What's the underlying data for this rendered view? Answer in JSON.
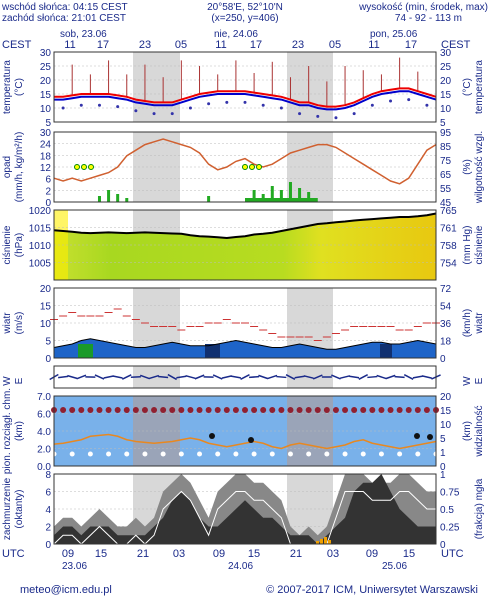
{
  "header": {
    "sunrise": "wschód słońca: 04:15 CEST",
    "sunset": "zachód słońca: 21:01 CEST",
    "coords": "20°58'E, 52°10'N",
    "grid": "(x=250, y=406)",
    "elev_label": "wysokość (min, środek, max)",
    "elev_values": "74 - 92 - 113 m"
  },
  "footer": {
    "email": "meteo@icm.edu.pl",
    "copyright": "© 2007-2017 ICM, Uniwersytet Warszawski"
  },
  "time_axis": {
    "top_tz": "CEST",
    "bottom_tz": "UTC",
    "top_days": [
      "sob, 23.06",
      "nie, 24.06",
      "pon, 25.06"
    ],
    "top_hours": [
      "11",
      "17",
      "23",
      "05",
      "11",
      "17",
      "23",
      "05",
      "11",
      "17"
    ],
    "bottom_hours": [
      "09",
      "15",
      "21",
      "03",
      "09",
      "15",
      "21",
      "03",
      "09",
      "15"
    ],
    "bottom_days": [
      "23.06",
      "24.06",
      "25.06"
    ]
  },
  "chart_data": [
    {
      "type": "line",
      "id": "temperature",
      "ylabel_left": "temperatura",
      "unit_left": "(°C)",
      "ylabel_right": "temperatura",
      "unit_right": "(°C)",
      "ylim": [
        5,
        30
      ],
      "yticks": [
        "30",
        "25",
        "20",
        "15",
        "10",
        "5"
      ],
      "series": [
        {
          "values": [
            14,
            14,
            14.5,
            15,
            15,
            15,
            15,
            14.5,
            14,
            13,
            12.5,
            12,
            12,
            12,
            13,
            14,
            15,
            15.5,
            16,
            16,
            16,
            16,
            15.5,
            15,
            14.5,
            14,
            13,
            12,
            12,
            11,
            10.5,
            10.5,
            11,
            12,
            13.5,
            15,
            16,
            16.5,
            17,
            17,
            16,
            15,
            14
          ]
        },
        {
          "values": [
            13,
            13,
            13.5,
            14,
            14,
            14,
            14,
            13.5,
            13,
            12,
            11.5,
            11,
            11,
            11,
            12,
            13,
            14,
            14.5,
            15,
            15,
            15,
            15,
            14.5,
            14,
            13.5,
            13,
            12,
            11,
            11,
            10,
            9.5,
            9.5,
            10,
            11,
            12.5,
            14,
            15,
            15.5,
            16,
            16,
            15,
            14,
            13
          ]
        }
      ]
    },
    {
      "type": "bar",
      "id": "precipitation",
      "ylabel_left": "opad",
      "unit_left": "(mm/h, kg/m²/h)",
      "ylabel_right": "wilgotność wzgl.",
      "unit_right": "(%)",
      "ylim_left": [
        0,
        30
      ],
      "ylim_right": [
        45,
        95
      ],
      "yticks_left": [
        "30",
        "24",
        "18",
        "12",
        "6",
        "2",
        "0"
      ],
      "yticks_right": [
        "95",
        "85",
        "75",
        "65",
        "55",
        "45"
      ],
      "series": [
        {
          "values": [
            62,
            60,
            62,
            60,
            62,
            64,
            66,
            70,
            78,
            82,
            86,
            88,
            90,
            88,
            86,
            84,
            80,
            72,
            68,
            70,
            74,
            76,
            72,
            70,
            72,
            76,
            80,
            82,
            84,
            86,
            86,
            84,
            80,
            76,
            72,
            68,
            64,
            60,
            58,
            62,
            72,
            82,
            86
          ]
        }
      ]
    },
    {
      "type": "area",
      "id": "pressure",
      "ylabel_left": "ciśnienie",
      "unit_left": "(hPa)",
      "ylabel_right": "ciśnienie",
      "unit_right": "(mm Hg)",
      "ylim": [
        1000,
        1020
      ],
      "yticks_left": [
        "1020",
        "1015",
        "1010",
        "1005"
      ],
      "yticks_right": [
        "765",
        "761",
        "758",
        "754"
      ],
      "series": [
        {
          "values": [
            1014.2,
            1014,
            1013.8,
            1013.5,
            1013.4,
            1013.5,
            1013.6,
            1013.5,
            1013.4,
            1013.5,
            1013.6,
            1013.5,
            1013.4,
            1013.3,
            1013.2,
            1012.8,
            1012.5,
            1012.4,
            1012.2,
            1012,
            1012.3,
            1012.5,
            1013,
            1013.2,
            1013.5,
            1014,
            1014.5,
            1015,
            1015.5,
            1016,
            1016.2,
            1016.5,
            1016.7,
            1017,
            1017.2,
            1017.4,
            1017.6,
            1017.8,
            1018,
            1018,
            1018.2,
            1018.5,
            1019
          ]
        }
      ]
    },
    {
      "type": "area",
      "id": "wind",
      "ylabel_left": "wiatr",
      "unit_left": "(m/s)",
      "ylabel_right": "wiatr",
      "unit_right": "(km/h)",
      "ylim": [
        0,
        20
      ],
      "yticks_left": [
        "20",
        "15",
        "10",
        "5",
        "0"
      ],
      "yticks_right": [
        "72",
        "54",
        "36",
        "18",
        "0"
      ],
      "series": [
        {
          "values": [
            3,
            3.5,
            4,
            5,
            5.5,
            5,
            4.5,
            4,
            3.5,
            3,
            3,
            3.5,
            4,
            4.5,
            4,
            3.5,
            3.5,
            3.5,
            4,
            4.5,
            5,
            4.5,
            4,
            3.5,
            3,
            3,
            3.5,
            4,
            3.5,
            3,
            2.5,
            2.5,
            3,
            3.5,
            4,
            4.5,
            4.5,
            4,
            4,
            4.5,
            5,
            4.5,
            4
          ]
        },
        {
          "values": [
            11,
            12,
            13,
            12,
            12,
            12,
            13,
            14,
            12,
            11,
            10,
            9,
            9,
            9,
            8,
            9,
            9,
            10,
            10,
            11,
            10,
            10,
            9,
            8,
            7,
            6,
            6,
            6,
            6,
            5,
            6,
            7,
            8,
            9,
            9,
            9,
            9,
            9,
            8,
            8,
            9,
            10,
            10
          ]
        }
      ]
    },
    {
      "type": "scatter",
      "id": "clouds",
      "ylabel_left": "pion. rozciągł. chm.",
      "unit_left": "(km)",
      "ylabel_right": "widzialność",
      "unit_right": "(km)",
      "ylim_left": [
        0,
        8
      ],
      "ylim_right": [
        0,
        25
      ],
      "yticks_left": [
        "7.0",
        "6.0",
        "4.0",
        "2.0",
        "0.0"
      ],
      "yticks_right": [
        "20",
        "15",
        "10",
        "5",
        "1",
        "0"
      ],
      "series": [
        {
          "values": [
            2.5,
            2.6,
            2.8,
            3.0,
            3.4,
            3.5,
            3.6,
            3.4,
            3.0,
            2.8,
            2.7,
            2.6,
            2.7,
            2.8,
            3.0,
            3.2,
            3.0,
            2.6,
            2.4,
            2.2,
            2.4,
            2.6,
            2.8,
            2.6,
            2.2,
            2.0,
            2.4,
            2.6,
            2.4,
            2.2,
            2.0,
            2.2,
            2.4,
            2.8,
            3.0,
            2.6,
            2.4,
            2.2,
            2.0,
            2.2,
            2.4,
            2.6,
            2.8
          ]
        }
      ]
    },
    {
      "type": "area",
      "id": "cloudiness",
      "ylabel_left": "zachmurzenie",
      "unit_left": "(oktanty)",
      "ylabel_right": "(frakcja) mgła",
      "unit_right": "",
      "ylim_left": [
        0,
        8
      ],
      "ylim_right": [
        0,
        1
      ],
      "yticks_left": [
        "8",
        "6",
        "4",
        "2",
        "0"
      ],
      "yticks_right": [
        "1",
        "0.75",
        "0.5",
        "0.25",
        "0"
      ],
      "series": [
        {
          "values": [
            2,
            3,
            3,
            2,
            3,
            4,
            3,
            2,
            2,
            3,
            2,
            3,
            6,
            7,
            8,
            7,
            5,
            3,
            6,
            7,
            8,
            8,
            7,
            7,
            6,
            5,
            2,
            1,
            2,
            1,
            2,
            5,
            8,
            8,
            8,
            7,
            7,
            7,
            8,
            8,
            7,
            6,
            6
          ]
        },
        {
          "values": [
            1,
            2,
            2,
            1,
            2,
            2,
            2,
            1,
            1,
            1,
            1,
            2,
            3,
            5,
            6,
            5,
            3,
            2,
            2,
            3,
            4,
            5,
            4,
            3,
            3,
            2,
            1,
            1,
            1,
            0,
            1,
            2,
            3,
            6,
            7,
            7,
            8,
            6,
            4,
            3,
            2,
            2,
            2
          ]
        }
      ]
    }
  ]
}
